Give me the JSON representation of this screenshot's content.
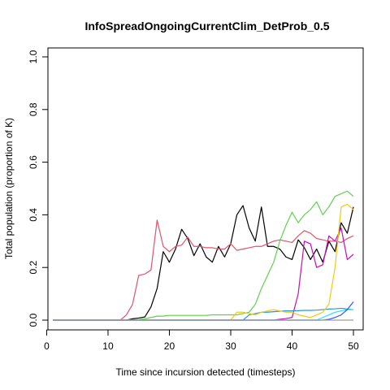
{
  "chart_data": {
    "type": "line",
    "title": "InfoSpreadOngoingCurrentClim_DetProb_0.5",
    "xlabel": "Time since incursion detected (timesteps)",
    "ylabel": "Total population (proportion of K)",
    "xlim": [
      1,
      50
    ],
    "ylim": [
      0,
      1
    ],
    "xticks": [
      0,
      10,
      20,
      30,
      40,
      50
    ],
    "yticks": [
      0.0,
      0.2,
      0.4,
      0.6,
      0.8,
      1.0
    ],
    "xtick_labels": [
      "0",
      "10",
      "20",
      "30",
      "40",
      "50"
    ],
    "ytick_labels": [
      "0.0",
      "0.2",
      "0.4",
      "0.6",
      "0.8",
      "1.0"
    ],
    "grid": false,
    "legend": false,
    "x": [
      1,
      2,
      3,
      4,
      5,
      6,
      7,
      8,
      9,
      10,
      11,
      12,
      13,
      14,
      15,
      16,
      17,
      18,
      19,
      20,
      21,
      22,
      23,
      24,
      25,
      26,
      27,
      28,
      29,
      30,
      31,
      32,
      33,
      34,
      35,
      36,
      37,
      38,
      39,
      40,
      41,
      42,
      43,
      44,
      45,
      46,
      47,
      48,
      49,
      50
    ],
    "series": [
      {
        "color": "#000000",
        "values": [
          0,
          0,
          0,
          0,
          0,
          0,
          0,
          0,
          0,
          0,
          0,
          0,
          0,
          0.005,
          0.008,
          0.012,
          0.05,
          0.12,
          0.26,
          0.22,
          0.27,
          0.345,
          0.31,
          0.245,
          0.29,
          0.24,
          0.22,
          0.28,
          0.24,
          0.29,
          0.4,
          0.435,
          0.35,
          0.3,
          0.43,
          0.28,
          0.28,
          0.27,
          0.24,
          0.23,
          0.305,
          0.275,
          0.23,
          0.27,
          0.22,
          0.3,
          0.26,
          0.37,
          0.33,
          0.43
        ]
      },
      {
        "color": "#DF536B",
        "values": [
          0,
          0,
          0,
          0,
          0,
          0,
          0,
          0,
          0,
          0,
          0,
          0,
          0.02,
          0.06,
          0.17,
          0.175,
          0.19,
          0.38,
          0.28,
          0.26,
          0.28,
          0.285,
          0.315,
          0.28,
          0.28,
          0.275,
          0.275,
          0.27,
          0.27,
          0.29,
          0.265,
          0.27,
          0.275,
          0.28,
          0.28,
          0.29,
          0.3,
          0.305,
          0.3,
          0.295,
          0.32,
          0.34,
          0.33,
          0.31,
          0.305,
          0.3,
          0.3,
          0.295,
          0.31,
          0.32
        ]
      },
      {
        "color": "#61D04F",
        "values": [
          0,
          0,
          0,
          0,
          0,
          0,
          0,
          0,
          0,
          0,
          0,
          0,
          0,
          0,
          0.002,
          0.005,
          0.01,
          0.015,
          0.015,
          0.018,
          0.018,
          0.018,
          0.018,
          0.018,
          0.018,
          0.018,
          0.02,
          0.02,
          0.02,
          0.02,
          0.02,
          0.025,
          0.03,
          0.06,
          0.12,
          0.17,
          0.22,
          0.3,
          0.36,
          0.41,
          0.37,
          0.4,
          0.42,
          0.45,
          0.4,
          0.43,
          0.47,
          0.48,
          0.49,
          0.47
        ]
      },
      {
        "color": "#CD0BBC",
        "values": [
          0,
          0,
          0,
          0,
          0,
          0,
          0,
          0,
          0,
          0,
          0,
          0,
          0,
          0,
          0,
          0,
          0,
          0,
          0,
          0,
          0,
          0,
          0,
          0,
          0,
          0,
          0,
          0,
          0,
          0,
          0,
          0,
          0,
          0,
          0,
          0,
          0,
          0.003,
          0.006,
          0.01,
          0.1,
          0.3,
          0.29,
          0.2,
          0.21,
          0.32,
          0.3,
          0.35,
          0.23,
          0.25
        ]
      },
      {
        "color": "#2297E6",
        "values": [
          0,
          0,
          0,
          0,
          0,
          0,
          0,
          0,
          0,
          0,
          0,
          0,
          0,
          0,
          0,
          0,
          0,
          0,
          0,
          0,
          0,
          0,
          0,
          0,
          0,
          0,
          0,
          0,
          0,
          0,
          0,
          0,
          0.02,
          0.025,
          0.03,
          0.03,
          0.032,
          0.034,
          0.035,
          0.035,
          0.036,
          0.037,
          0.037,
          0.038,
          0.04,
          0.042,
          0.043,
          0.045,
          0.042,
          0.04
        ]
      },
      {
        "color": "#28E2E5",
        "values": [
          0,
          0,
          0,
          0,
          0,
          0,
          0,
          0,
          0,
          0,
          0,
          0,
          0,
          0,
          0,
          0,
          0,
          0,
          0,
          0,
          0,
          0,
          0,
          0,
          0,
          0,
          0,
          0,
          0,
          0,
          0,
          0,
          0,
          0,
          0,
          0,
          0,
          0,
          0,
          0,
          0,
          0,
          0,
          0,
          0.01,
          0.02,
          0.03,
          0.035,
          0.04,
          0.04
        ]
      },
      {
        "color": "#F5C710",
        "values": [
          0,
          0,
          0,
          0,
          0,
          0,
          0,
          0,
          0,
          0,
          0,
          0,
          0,
          0,
          0,
          0,
          0,
          0,
          0,
          0,
          0,
          0,
          0,
          0,
          0,
          0,
          0,
          0,
          0,
          0,
          0.03,
          0.03,
          0.025,
          0.02,
          0.03,
          0.035,
          0.04,
          0.035,
          0.03,
          0.03,
          0.02,
          0.015,
          0.01,
          0.02,
          0.03,
          0.06,
          0.2,
          0.43,
          0.44,
          0.42
        ]
      },
      {
        "color": "#3355FF",
        "values": [
          0,
          0,
          0,
          0,
          0,
          0,
          0,
          0,
          0,
          0,
          0,
          0,
          0,
          0,
          0,
          0,
          0,
          0,
          0,
          0,
          0,
          0,
          0,
          0,
          0,
          0,
          0,
          0,
          0,
          0,
          0,
          0,
          0,
          0,
          0,
          0,
          0,
          0,
          0,
          0,
          0,
          0,
          0,
          0,
          0,
          0.003,
          0.01,
          0.02,
          0.04,
          0.07
        ]
      },
      {
        "color": "#9E9E9E",
        "values": [
          0,
          0,
          0,
          0,
          0,
          0,
          0,
          0,
          0,
          0,
          0,
          0,
          0,
          0,
          0,
          0,
          0,
          0,
          0,
          0,
          0,
          0,
          0,
          0,
          0,
          0,
          0,
          0,
          0,
          0,
          0,
          0,
          0,
          0,
          0,
          0,
          0,
          0,
          0,
          0,
          0,
          0,
          0,
          0,
          0,
          0,
          0,
          0,
          0,
          0
        ]
      }
    ]
  }
}
